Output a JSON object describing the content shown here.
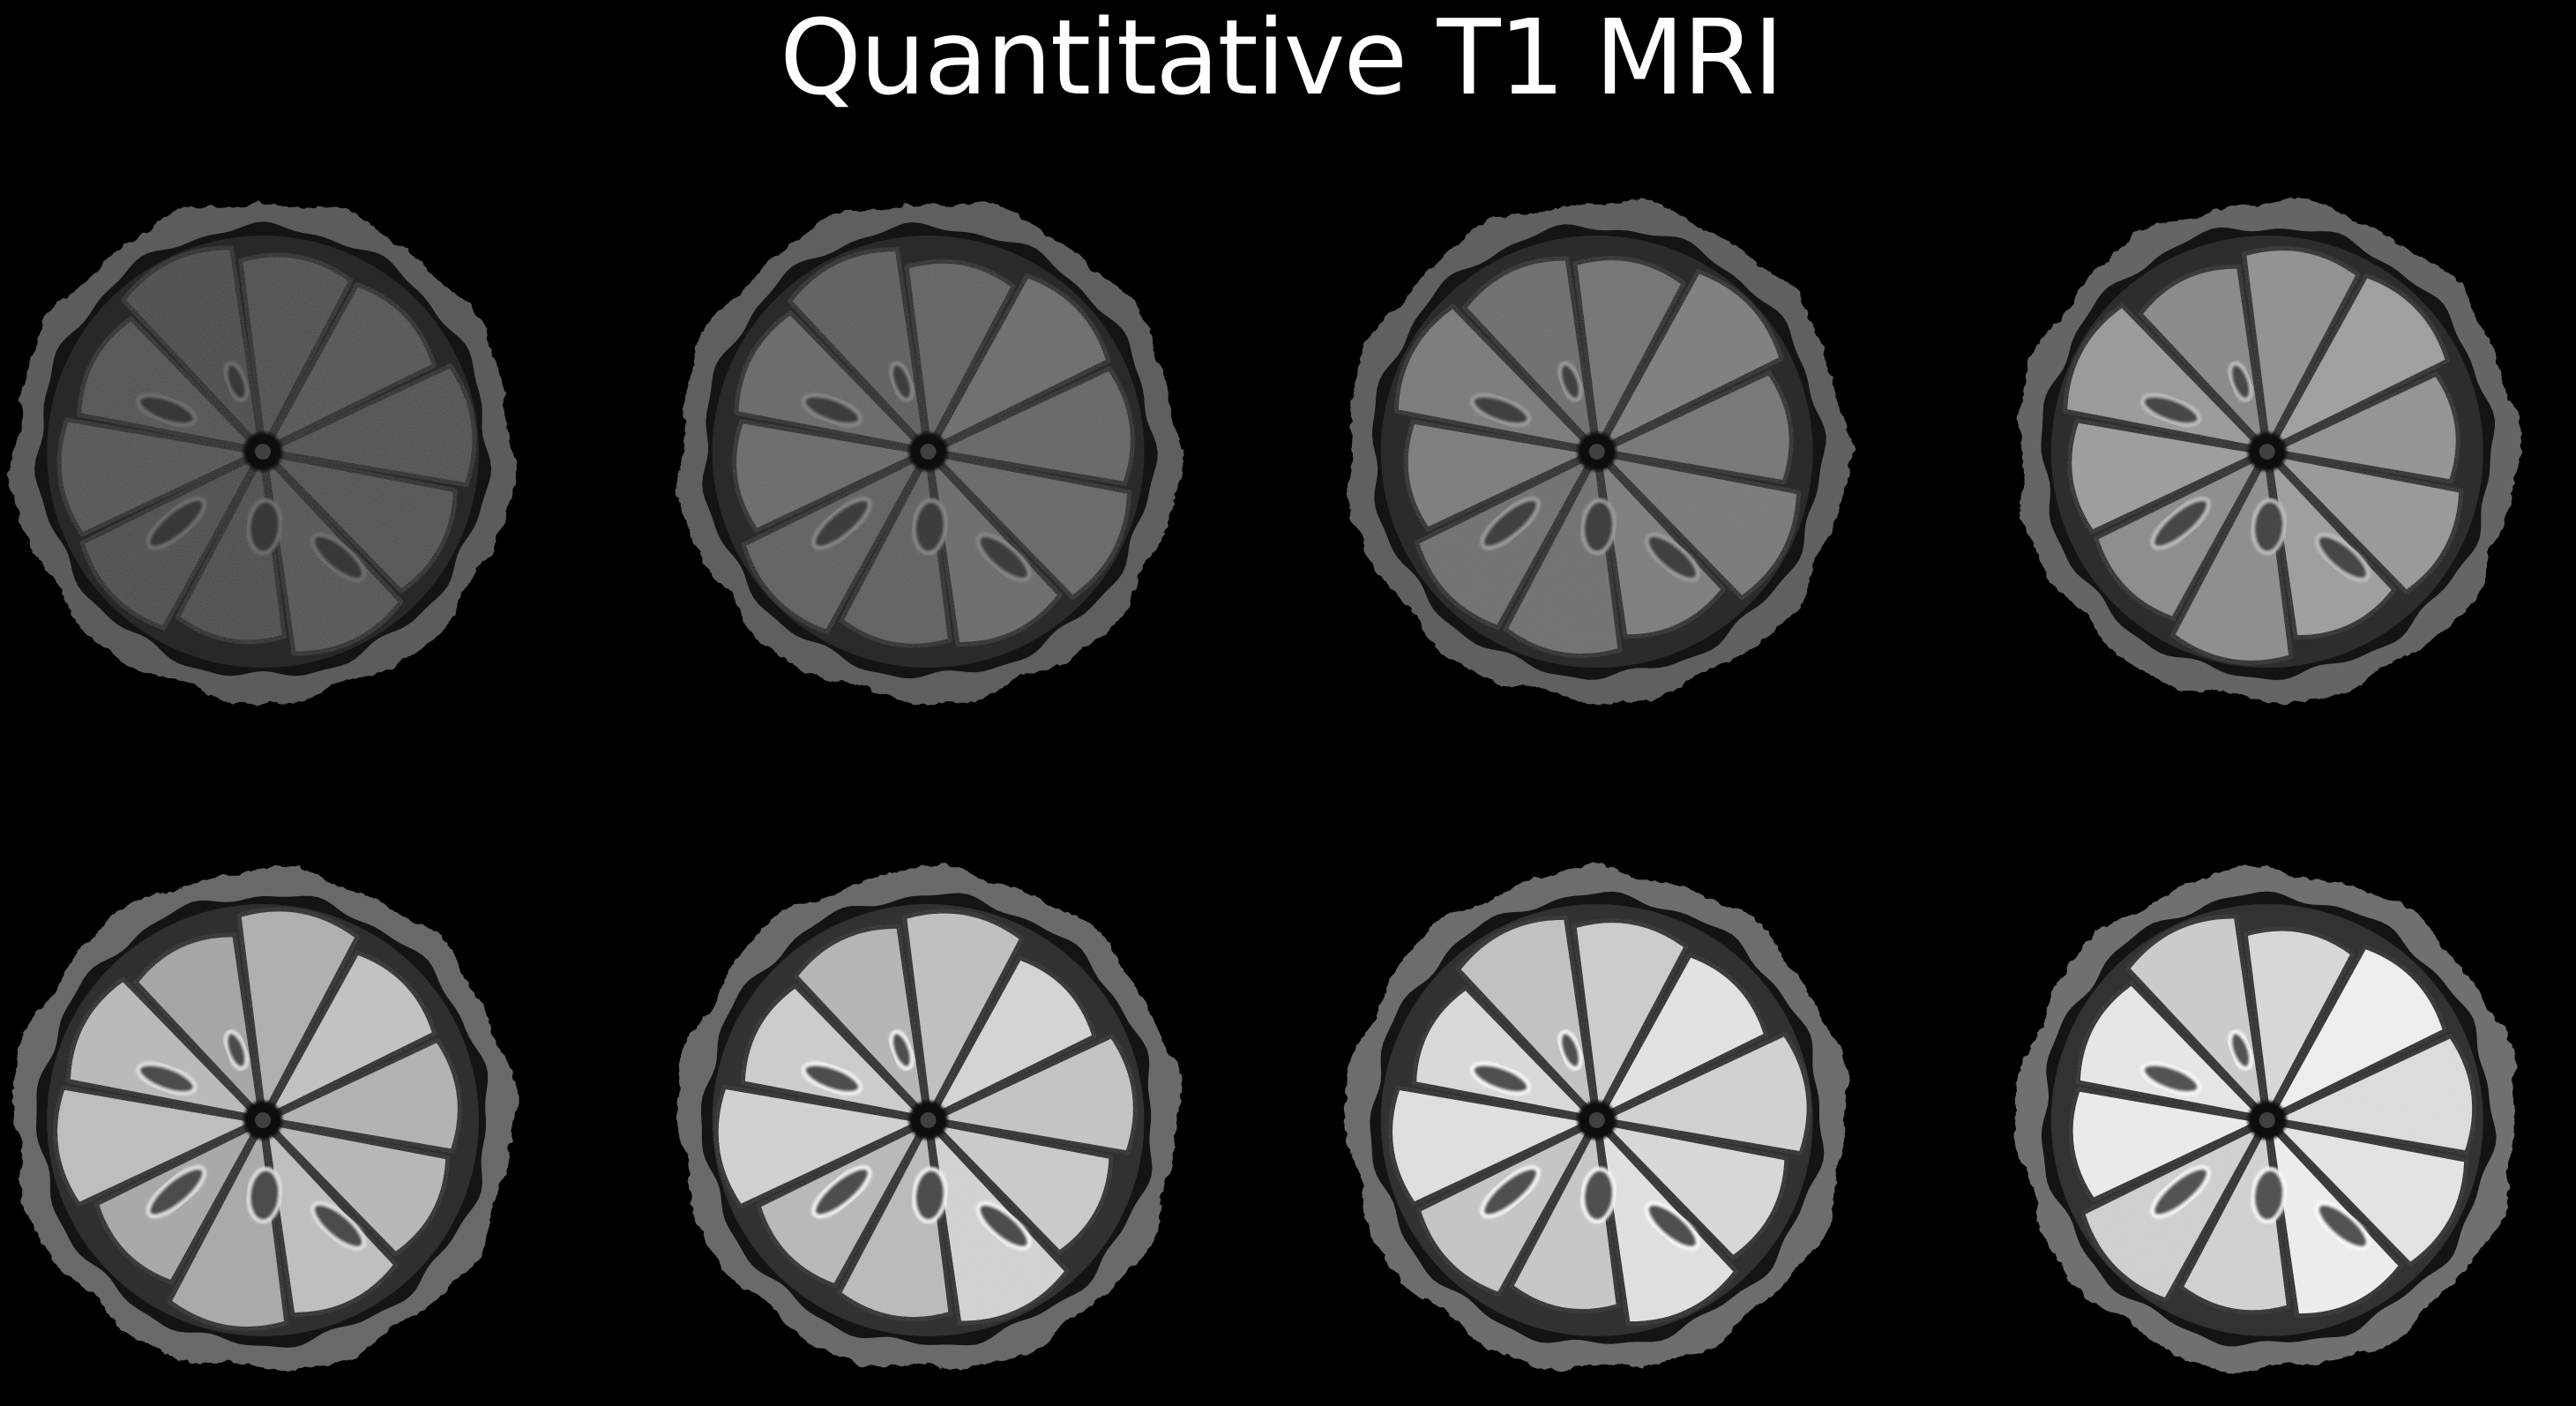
{
  "title": "Quantitative T1 MRI",
  "figure": {
    "rows": 2,
    "columns": 4,
    "subject": "orange-slice",
    "segments_per_slice": 10,
    "background_color": "#000000",
    "panels": [
      {
        "brightness": 0.3
      },
      {
        "brightness": 0.4
      },
      {
        "brightness": 0.48
      },
      {
        "brightness": 0.62
      },
      {
        "brightness": 0.76
      },
      {
        "brightness": 0.84
      },
      {
        "brightness": 0.9
      },
      {
        "brightness": 0.95
      }
    ]
  }
}
